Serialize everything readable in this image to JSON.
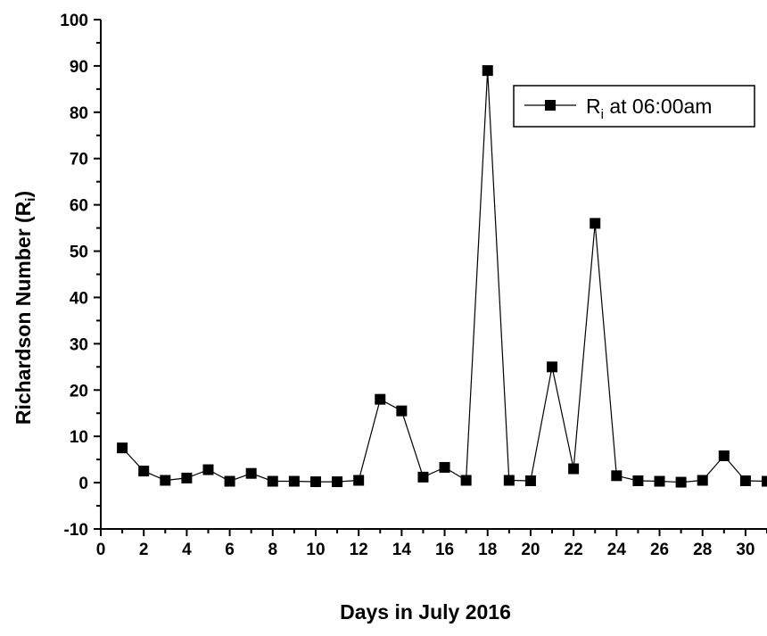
{
  "chart_data": {
    "type": "line",
    "xlabel": "Days in July 2016",
    "ylabel_main": "Richardson Number (R",
    "ylabel_sub": "i",
    "ylabel_close": ")",
    "xlim": [
      0,
      31
    ],
    "ylim": [
      -10,
      100
    ],
    "xticks": [
      0,
      2,
      4,
      6,
      8,
      10,
      12,
      14,
      16,
      18,
      20,
      22,
      24,
      26,
      28,
      30
    ],
    "yticks": [
      -10,
      0,
      10,
      20,
      30,
      40,
      50,
      60,
      70,
      80,
      90,
      100
    ],
    "legend": {
      "position": "top-right"
    },
    "series": [
      {
        "name_main": "R",
        "name_sub": "i",
        "name_rest": " at 06:00am",
        "color": "#000000",
        "marker": "square",
        "x": [
          1,
          2,
          3,
          4,
          5,
          6,
          7,
          8,
          9,
          10,
          11,
          12,
          13,
          14,
          15,
          16,
          17,
          18,
          19,
          20,
          21,
          22,
          23,
          24,
          25,
          26,
          27,
          28,
          29,
          30,
          31
        ],
        "y": [
          7.5,
          2.5,
          0.5,
          1.0,
          2.8,
          0.3,
          2.0,
          0.3,
          0.3,
          0.2,
          0.2,
          0.5,
          18.0,
          15.5,
          1.2,
          3.3,
          0.5,
          89.0,
          0.5,
          0.4,
          25.0,
          3.0,
          56.0,
          1.5,
          0.4,
          0.3,
          0.1,
          0.5,
          5.8,
          0.4,
          0.3
        ]
      }
    ]
  }
}
